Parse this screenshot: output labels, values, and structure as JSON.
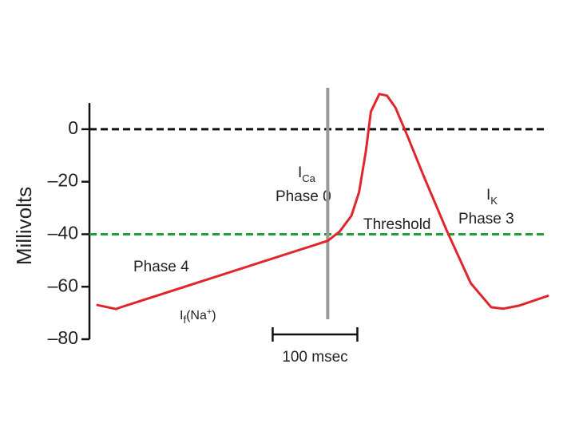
{
  "chart_data": {
    "type": "line",
    "y_label": "Millivolts",
    "ylim": [
      -80,
      10
    ],
    "yticks": [
      0,
      {
        "value": -20,
        "label": "–20"
      },
      {
        "value": -40,
        "label": "–40"
      },
      {
        "value": -60,
        "label": "–60"
      },
      {
        "value": -80,
        "label": "–80"
      }
    ],
    "xlim": [
      0,
      532
    ],
    "x": [
      0,
      22,
      26,
      272,
      286,
      300,
      309,
      317,
      323,
      333,
      342,
      352,
      366,
      385,
      413,
      441,
      465,
      479,
      498,
      532
    ],
    "series": [
      {
        "color": "#e0262c",
        "values": [
          -67,
          -68.5,
          -68,
          -42.5,
          -39,
          -33,
          -24,
          -8.5,
          6.7,
          13.4,
          12.8,
          8.2,
          -2.4,
          -17.6,
          -38.9,
          -58.7,
          -67.8,
          -68.4,
          -67.2,
          -63.5
        ]
      }
    ],
    "reference_lines": [
      {
        "y": 0,
        "color": "#111111"
      },
      {
        "y": -40,
        "color": "#1f9e3c"
      }
    ],
    "marker_line": {
      "x": 272,
      "color": "#999999"
    },
    "scale_bar": {
      "label": "100 msec",
      "x": [
        207,
        307
      ]
    },
    "annotations": [
      {
        "text": "I",
        "sub": "Ca"
      },
      {
        "text": "Phase 0"
      },
      {
        "text": "Threshold"
      },
      {
        "text": "I",
        "sub": "K"
      },
      {
        "text": "Phase 3"
      },
      {
        "text": "Phase 4"
      },
      {
        "text": "I",
        "sub": "f",
        "after": "(Na",
        "sup": "+",
        "end": ")"
      }
    ]
  }
}
